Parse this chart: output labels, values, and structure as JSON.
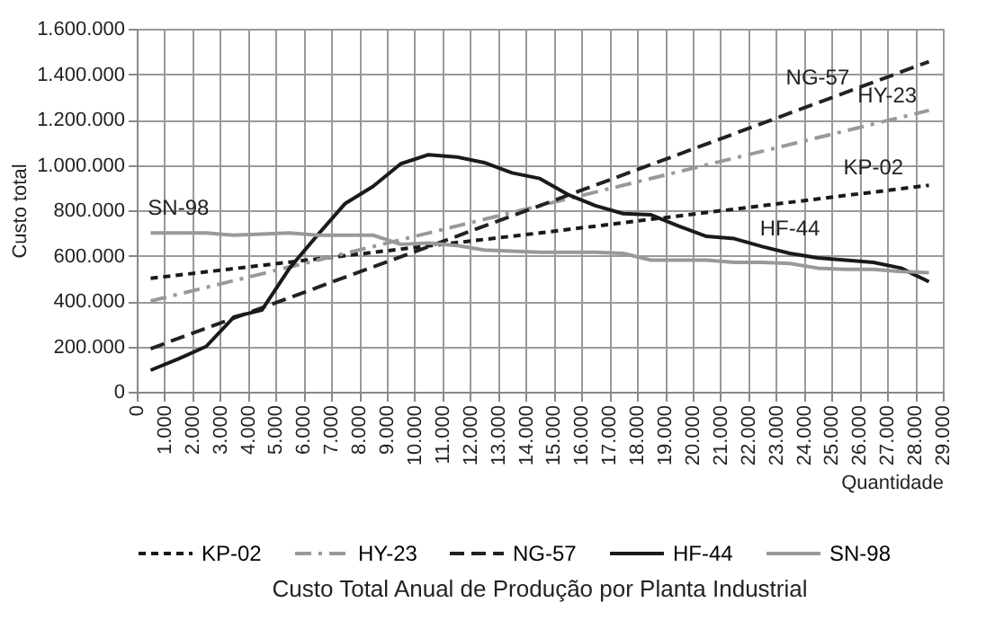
{
  "chart_data": {
    "type": "line",
    "title": "Custo Total Anual de Produção por Planta Industrial",
    "xlabel": "Quantidade",
    "ylabel": "Custo total",
    "xlim": [
      0,
      29000
    ],
    "ylim": [
      0,
      1600000
    ],
    "xticks": [
      0,
      {
        "value": 1000,
        "label": "1.000"
      },
      {
        "value": 2000,
        "label": "2.000"
      },
      {
        "value": 3000,
        "label": "3.000"
      },
      {
        "value": 4000,
        "label": "4.000"
      },
      {
        "value": 5000,
        "label": "5.000"
      },
      {
        "value": 6000,
        "label": "6.000"
      },
      {
        "value": 7000,
        "label": "7.000"
      },
      {
        "value": 8000,
        "label": "8.000"
      },
      {
        "value": 9000,
        "label": "9.000"
      },
      {
        "value": 10000,
        "label": "10.000"
      },
      {
        "value": 11000,
        "label": "11.000"
      },
      {
        "value": 12000,
        "label": "12.000"
      },
      {
        "value": 13000,
        "label": "13.000"
      },
      {
        "value": 14000,
        "label": "14.000"
      },
      {
        "value": 15000,
        "label": "15.000"
      },
      {
        "value": 16000,
        "label": "16.000"
      },
      {
        "value": 17000,
        "label": "17.000"
      },
      {
        "value": 18000,
        "label": "18.000"
      },
      {
        "value": 19000,
        "label": "19.000"
      },
      {
        "value": 20000,
        "label": "20.000"
      },
      {
        "value": 21000,
        "label": "21.000"
      },
      {
        "value": 22000,
        "label": "22.000"
      },
      {
        "value": 23000,
        "label": "23.000"
      },
      {
        "value": 24000,
        "label": "24.000"
      },
      {
        "value": 25000,
        "label": "25.000"
      },
      {
        "value": 26000,
        "label": "26.000"
      },
      {
        "value": 27000,
        "label": "27.000"
      },
      {
        "value": 28000,
        "label": "28.000"
      },
      {
        "value": 29000,
        "label": "29.000"
      }
    ],
    "yticks": [
      0,
      {
        "value": 200000,
        "label": "200.000"
      },
      {
        "value": 400000,
        "label": "400.000"
      },
      {
        "value": 600000,
        "label": "600.000"
      },
      {
        "value": 800000,
        "label": "800.000"
      },
      {
        "value": 1000000,
        "label": "1.000.000"
      },
      {
        "value": 1200000,
        "label": "1.200.000"
      },
      {
        "value": 1400000,
        "label": "1.400.000"
      },
      {
        "value": 1600000,
        "label": "1.600.000"
      }
    ],
    "grid": true,
    "legend": "bottom",
    "marker": "none",
    "series": [
      {
        "name": "KP-02",
        "color": "#1a1a1a",
        "line_style": "dotted",
        "x": [
          500,
          14500,
          28500
        ],
        "values": [
          500000,
          700000,
          910000
        ]
      },
      {
        "name": "HY-23",
        "color": "#999999",
        "line_style": "dashdot",
        "x": [
          500,
          14500,
          28500
        ],
        "values": [
          400000,
          820000,
          1240000
        ]
      },
      {
        "name": "NG-57",
        "color": "#222222",
        "line_style": "dashed",
        "x": [
          500,
          14500,
          28500
        ],
        "values": [
          190000,
          820000,
          1455000
        ]
      },
      {
        "name": "HF-44",
        "color": "#1a1a1a",
        "line_style": "solid",
        "x": [
          500,
          1500,
          2500,
          3500,
          4500,
          5500,
          6500,
          7500,
          8500,
          9500,
          10500,
          11500,
          12500,
          13500,
          14500,
          15500,
          16500,
          17500,
          18500,
          19500,
          20500,
          21500,
          22500,
          23500,
          24500,
          25500,
          26500,
          27500,
          28500
        ],
        "values": [
          95000,
          145000,
          200000,
          330000,
          360000,
          545000,
          690000,
          830000,
          905000,
          1005000,
          1045000,
          1035000,
          1010000,
          965000,
          940000,
          870000,
          820000,
          785000,
          780000,
          730000,
          685000,
          675000,
          640000,
          610000,
          590000,
          580000,
          570000,
          545000,
          485000
        ]
      },
      {
        "name": "SN-98",
        "color": "#999999",
        "line_style": "solid",
        "x": [
          500,
          1500,
          2500,
          3500,
          4500,
          5500,
          6500,
          7500,
          8500,
          9500,
          10500,
          11500,
          12500,
          13500,
          14500,
          15500,
          16500,
          17500,
          18500,
          19500,
          20500,
          21500,
          22500,
          23500,
          24500,
          25500,
          26500,
          27500,
          28500
        ],
        "values": [
          700000,
          700000,
          700000,
          690000,
          695000,
          700000,
          690000,
          690000,
          690000,
          650000,
          655000,
          645000,
          625000,
          620000,
          615000,
          615000,
          615000,
          610000,
          580000,
          580000,
          580000,
          570000,
          570000,
          565000,
          545000,
          540000,
          540000,
          530000,
          525000
        ]
      }
    ],
    "annotations": [
      {
        "text": "NG-57",
        "x": 24500,
        "y": 1273600
      },
      {
        "text": "HY-23",
        "x": 27000,
        "y": 1195000
      },
      {
        "text": "KP-02",
        "x": 26500,
        "y": 880000
      },
      {
        "text": "HF-44",
        "x": 23500,
        "y": 610000
      },
      {
        "text": "SN-98",
        "x": 1500,
        "y": 700000
      }
    ]
  }
}
